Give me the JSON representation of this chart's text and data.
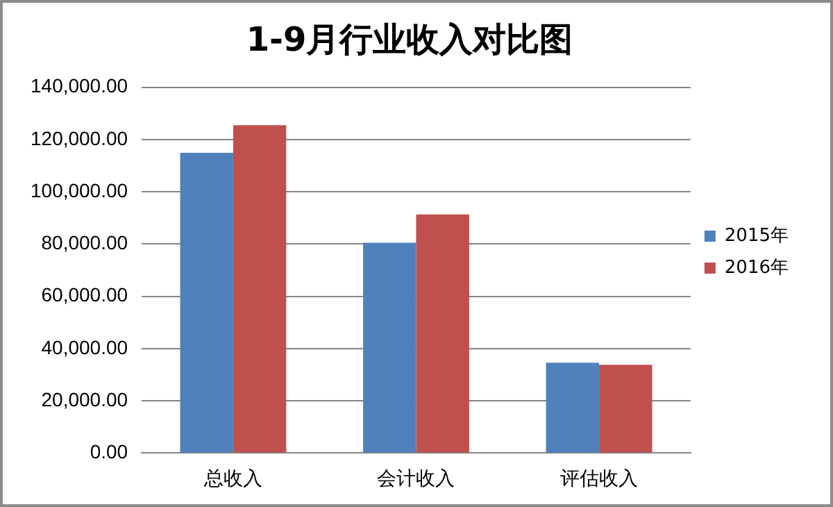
{
  "chart_data": {
    "type": "bar",
    "title": "1-9月行业收入对比图",
    "categories": [
      "总收入",
      "会计收入",
      "评估收入"
    ],
    "series": [
      {
        "name": "2015年",
        "color": "#4f81bd",
        "values": [
          114900,
          80500,
          34600
        ]
      },
      {
        "name": "2016年",
        "color": "#c0504d",
        "values": [
          125500,
          91300,
          33800
        ]
      }
    ],
    "ylim": [
      0,
      140000
    ],
    "yticks": [
      {
        "value": 0,
        "label": "0.00"
      },
      {
        "value": 20000,
        "label": "20,000.00"
      },
      {
        "value": 40000,
        "label": "40,000.00"
      },
      {
        "value": 60000,
        "label": "60,000.00"
      },
      {
        "value": 80000,
        "label": "80,000.00"
      },
      {
        "value": 100000,
        "label": "100,000.00"
      },
      {
        "value": 120000,
        "label": "120,000.00"
      },
      {
        "value": 140000,
        "label": "140,000.00"
      }
    ],
    "grid": "y",
    "legend": "right"
  }
}
